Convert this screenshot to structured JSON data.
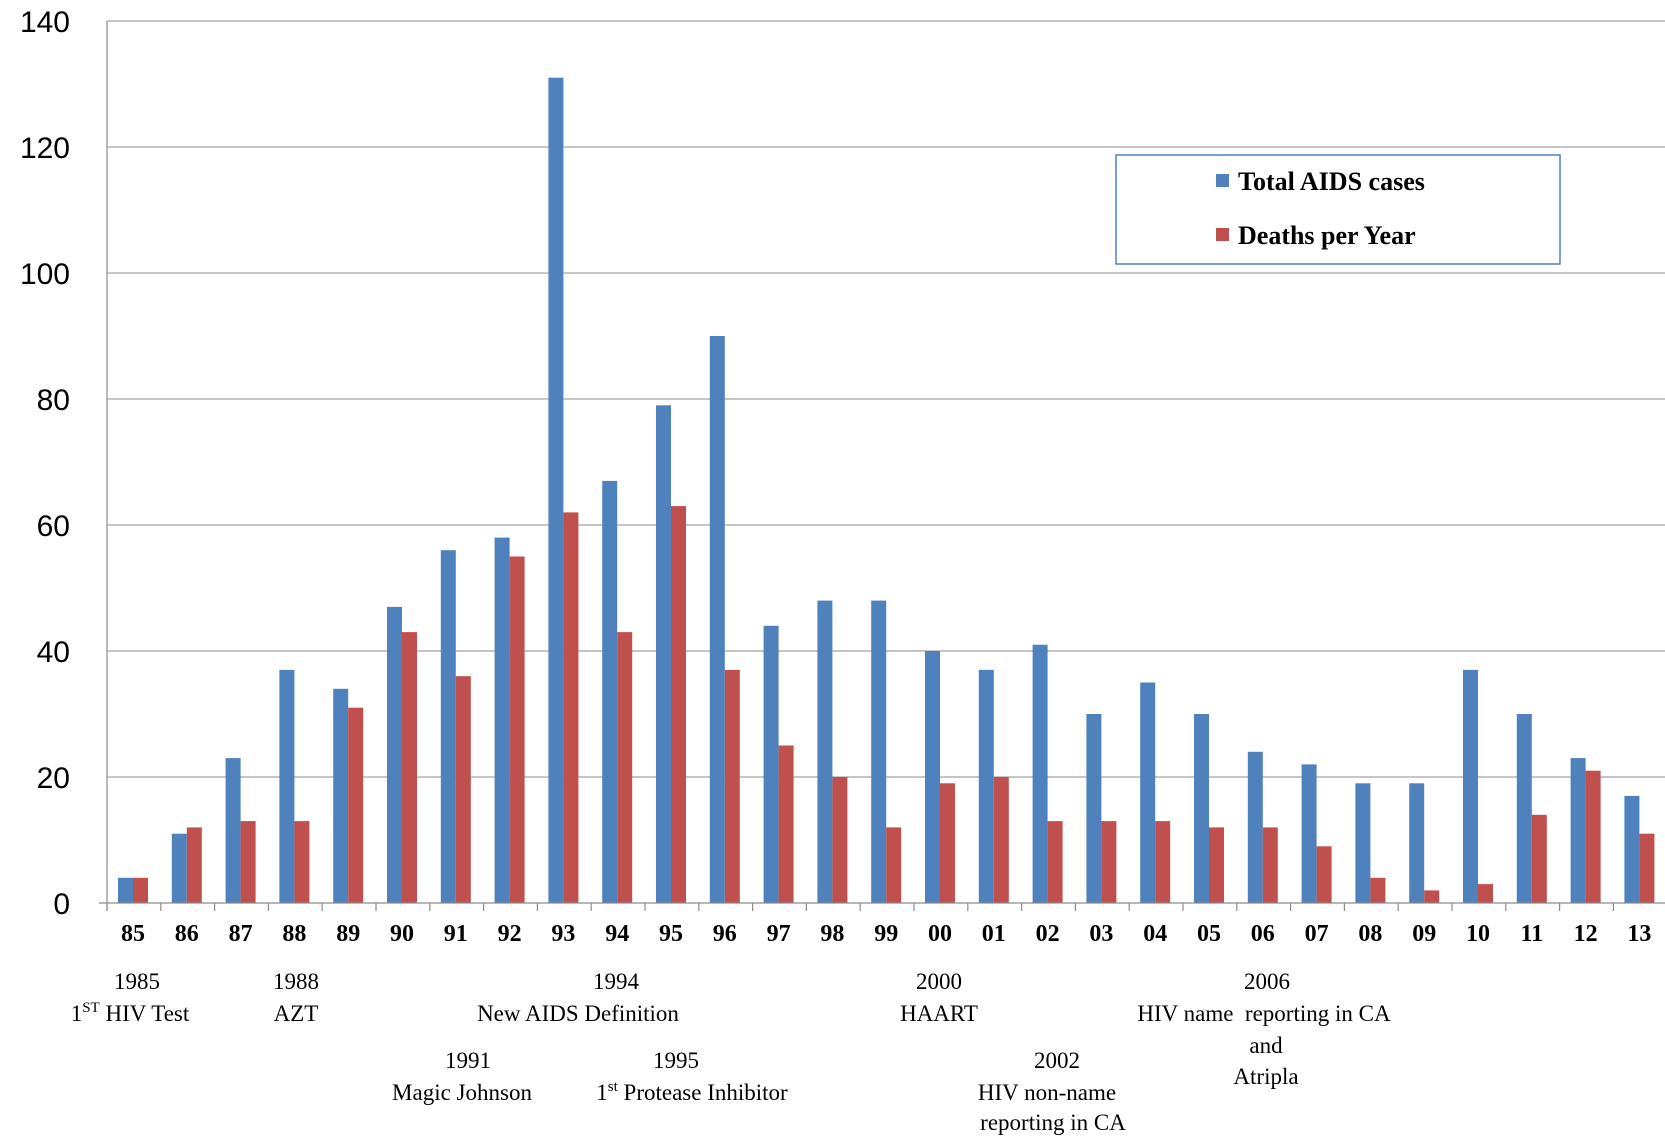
{
  "chart_data": {
    "type": "bar",
    "categories": [
      "85",
      "86",
      "87",
      "88",
      "89",
      "90",
      "91",
      "92",
      "93",
      "94",
      "95",
      "96",
      "97",
      "98",
      "99",
      "00",
      "01",
      "02",
      "03",
      "04",
      "05",
      "06",
      "07",
      "08",
      "09",
      "10",
      "11",
      "12",
      "13"
    ],
    "series": [
      {
        "name": "Total AIDS cases",
        "color": "#4F81BD",
        "values": [
          4,
          11,
          23,
          37,
          34,
          47,
          56,
          58,
          131,
          67,
          79,
          90,
          44,
          48,
          48,
          40,
          37,
          41,
          30,
          35,
          30,
          24,
          22,
          19,
          19,
          37,
          30,
          23,
          17
        ]
      },
      {
        "name": "Deaths per Year",
        "color": "#C0504D",
        "values": [
          4,
          12,
          13,
          13,
          31,
          43,
          36,
          55,
          62,
          43,
          63,
          37,
          25,
          20,
          12,
          19,
          20,
          13,
          13,
          13,
          12,
          12,
          9,
          4,
          2,
          3,
          14,
          21,
          11
        ]
      }
    ],
    "ylim": [
      0,
      140
    ],
    "yticks": [
      0,
      20,
      40,
      60,
      80,
      100,
      120,
      140
    ],
    "grid": true,
    "legend_position": "top-right",
    "annotations": [
      {
        "year": "1985",
        "text": "1ST HIV Test"
      },
      {
        "year": "1988",
        "text": "AZT"
      },
      {
        "year": "1991",
        "text": "Magic Johnson"
      },
      {
        "year": "1994",
        "text": "New AIDS Definition"
      },
      {
        "year": "1995",
        "text": "1st Protease Inhibitor"
      },
      {
        "year": "2000",
        "text": "HAART"
      },
      {
        "year": "2002",
        "text": "HIV non-name reporting in CA"
      },
      {
        "year": "2006",
        "text": "HIV name reporting in CA and Atripla"
      }
    ]
  },
  "annotations_text": {
    "a1985_year": "1985",
    "a1985_base": "1",
    "a1985_sup": "ST",
    "a1985_rest": " HIV Test",
    "a1988_year": "1988",
    "a1988_text": "AZT",
    "a1991_year": "1991",
    "a1991_text": "Magic Johnson",
    "a1994_year": "1994",
    "a1994_text": "New AIDS Definition",
    "a1995_year": "1995",
    "a1995_base": "1",
    "a1995_sup": "st",
    "a1995_rest": " Protease Inhibitor",
    "a2000_year": "2000",
    "a2000_text": "HAART",
    "a2002_year": "2002",
    "a2002_line1": "HIV non-name",
    "a2002_line2": "reporting in CA",
    "a2006_year": "2006",
    "a2006_line1": "HIV name  reporting in CA",
    "a2006_line2": "and",
    "a2006_line3": "Atripla"
  }
}
